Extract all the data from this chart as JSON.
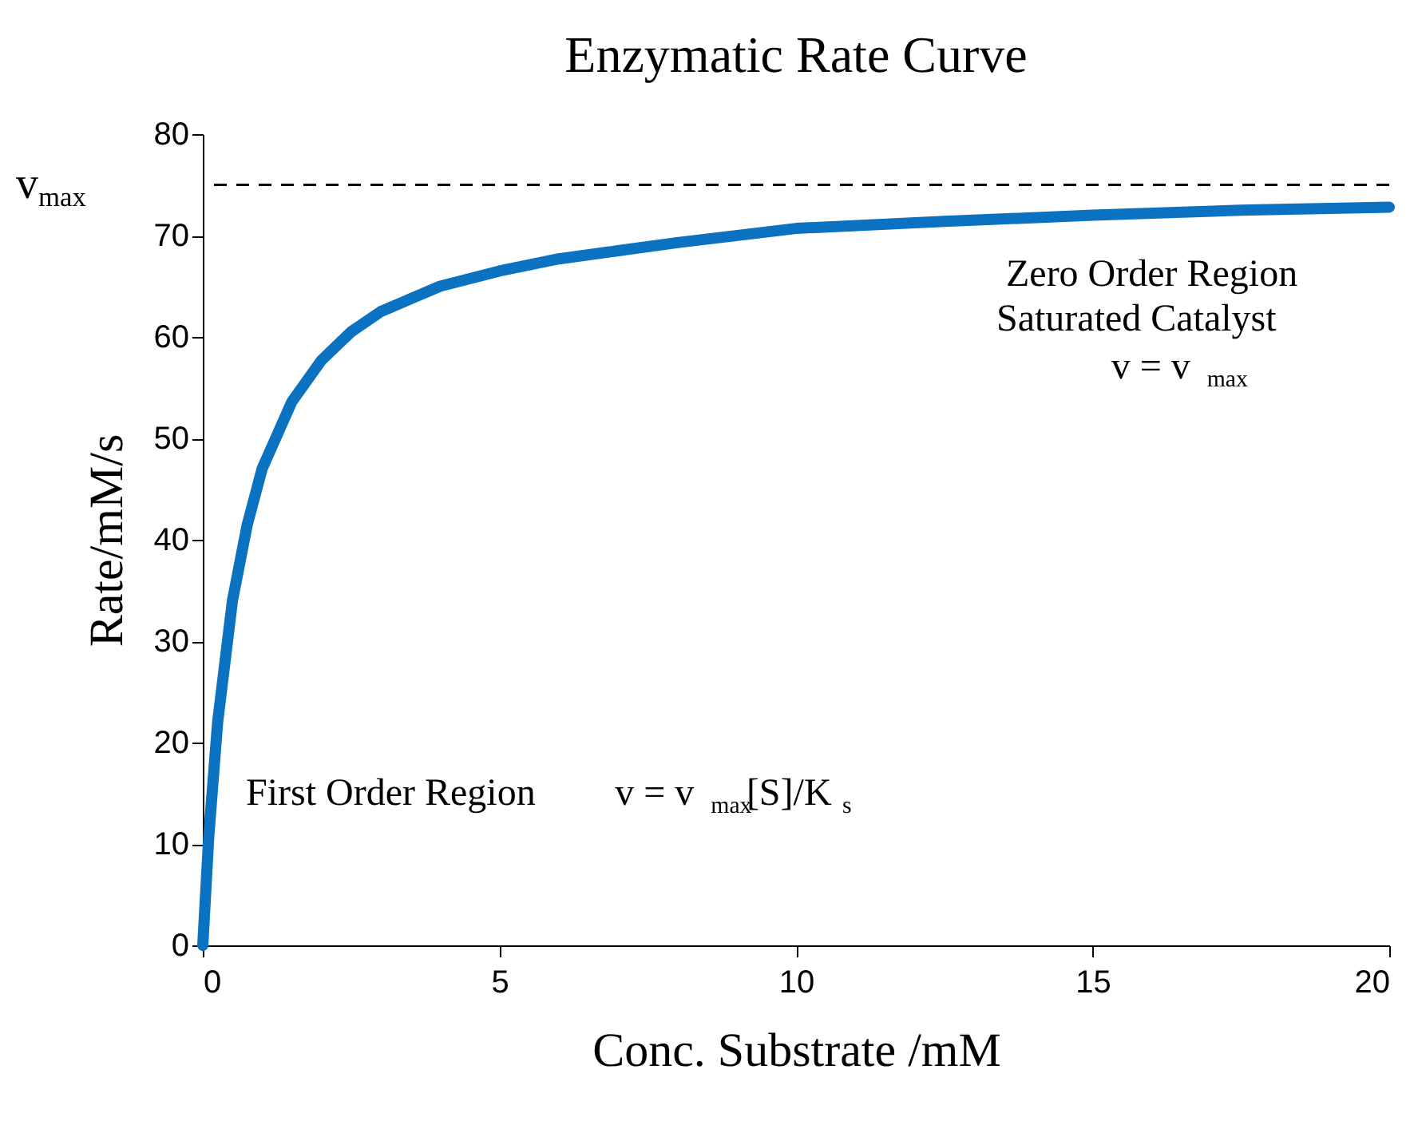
{
  "chart_data": {
    "type": "line",
    "title": "Enzymatic Rate Curve",
    "xlabel": "Conc. Substrate /mM",
    "ylabel": "Rate/mM/s",
    "x": [
      0,
      0.1,
      0.25,
      0.5,
      0.75,
      1,
      1.5,
      2,
      2.5,
      3,
      4,
      5,
      6,
      7,
      8,
      10,
      12.5,
      15,
      17.5,
      20
    ],
    "series": [
      {
        "color": "#0a72c0",
        "values": [
          0,
          10.7,
          22,
          34,
          41.5,
          47,
          53.6,
          57.7,
          60.5,
          62.5,
          65,
          66.5,
          67.7,
          68.5,
          69.3,
          70.7,
          71.4,
          72,
          72.5,
          72.8
        ]
      }
    ],
    "xlim": [
      0,
      20
    ],
    "xticks": [
      0,
      5,
      10,
      15,
      20
    ],
    "ylim": [
      0,
      80
    ],
    "yticks": [
      0,
      10,
      20,
      30,
      40,
      50,
      60,
      70,
      80
    ],
    "ref_lines": [
      {
        "axis": "y",
        "value": 75,
        "label": "v$_{max}$",
        "line_style": "dashed",
        "color": "#000000"
      }
    ],
    "annotations": [
      "Zero Order Region",
      "Saturated Catalyst",
      "v = v$_{max}$",
      "First Order Region",
      "v = v$_{max}$[S]/K$_{s}$"
    ],
    "grid": false,
    "marker": "none",
    "line_style": "solid"
  }
}
